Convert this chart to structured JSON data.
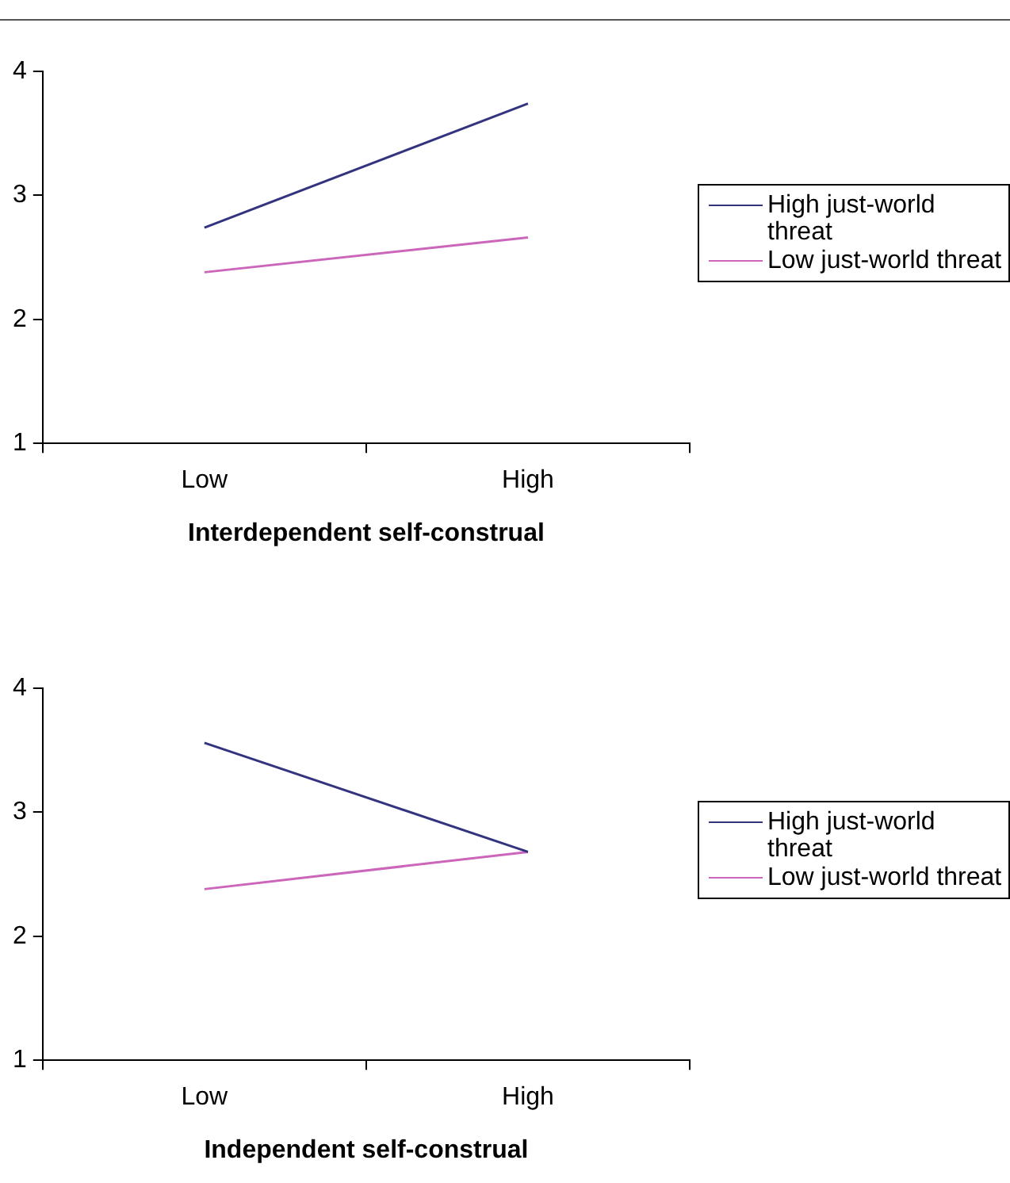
{
  "chart_data": [
    {
      "type": "line",
      "categories": [
        "Low",
        "High"
      ],
      "xlabel": "Interdependent self-construal",
      "ylim": [
        1,
        4
      ],
      "yticks": [
        1,
        2,
        3,
        4
      ],
      "legend": "right",
      "series": [
        {
          "name": "High just-world threat",
          "color": "#333380",
          "values": [
            2.74,
            3.74
          ]
        },
        {
          "name": "Low just-world threat",
          "color": "#cc66bb",
          "values": [
            2.38,
            2.66
          ]
        }
      ]
    },
    {
      "type": "line",
      "categories": [
        "Low",
        "High"
      ],
      "xlabel": "Independent self-construal",
      "ylim": [
        1,
        4
      ],
      "yticks": [
        1,
        2,
        3,
        4
      ],
      "legend": "right",
      "series": [
        {
          "name": "High just-world threat",
          "color": "#333380",
          "values": [
            3.56,
            2.68
          ]
        },
        {
          "name": "Low just-world threat",
          "color": "#cc66bb",
          "values": [
            2.38,
            2.68
          ]
        }
      ]
    }
  ]
}
